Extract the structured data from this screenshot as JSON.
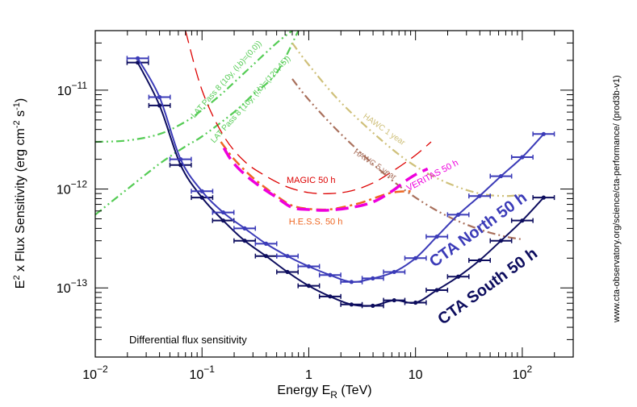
{
  "chart_data": {
    "type": "line",
    "title": "",
    "xlabel": "Energy E_R (TeV)",
    "ylabel": "E² x Flux Sensitivity (erg cm⁻² s⁻¹)",
    "x_scale": "log",
    "y_scale": "log",
    "xlim": [
      0.01,
      300
    ],
    "ylim": [
      2e-14,
      4e-11
    ],
    "x_ticks": [
      {
        "value": 0.01,
        "base": "10",
        "exp": "−2"
      },
      {
        "value": 0.1,
        "base": "10",
        "exp": "−1"
      },
      {
        "value": 1,
        "base": "1",
        "exp": ""
      },
      {
        "value": 10,
        "base": "10",
        "exp": ""
      },
      {
        "value": 100,
        "base": "10",
        "exp": "2"
      }
    ],
    "y_ticks": [
      {
        "value": 1e-13,
        "base": "10",
        "exp": "−13"
      },
      {
        "value": 1e-12,
        "base": "10",
        "exp": "−12"
      },
      {
        "value": 1e-11,
        "base": "10",
        "exp": "−11"
      }
    ],
    "annotation": "Differential flux sensitivity",
    "side_note": "www.cta-observatory.org/science/cta-performance/ (prod3b-v1)",
    "series": [
      {
        "name": "CTA North 50 h",
        "style": "points-line",
        "color": "#3b3bb8",
        "x": [
          0.025,
          0.04,
          0.063,
          0.1,
          0.158,
          0.251,
          0.398,
          0.631,
          1.0,
          1.585,
          2.512,
          3.981,
          6.31,
          10.0,
          15.85,
          25.12,
          39.81,
          63.1,
          100.0,
          158.5
        ],
        "y": [
          2.1e-11,
          8.5e-12,
          2e-12,
          9.5e-13,
          5.8e-13,
          4e-13,
          2.8e-13,
          2.1e-13,
          1.65e-13,
          1.35e-13,
          1.15e-13,
          1.25e-13,
          1.45e-13,
          2e-13,
          3.3e-13,
          5.5e-13,
          8.5e-13,
          1.35e-12,
          2.1e-12,
          3.6e-12
        ]
      },
      {
        "name": "CTA South 50 h",
        "style": "points-line",
        "color": "#0d0d5e",
        "x": [
          0.025,
          0.04,
          0.063,
          0.1,
          0.158,
          0.251,
          0.398,
          0.631,
          1.0,
          1.585,
          2.512,
          3.981,
          6.31,
          10.0,
          15.85,
          25.12,
          39.81,
          63.1,
          100.0,
          158.5
        ],
        "y": [
          1.9e-11,
          7e-12,
          1.75e-12,
          8.2e-13,
          4.8e-13,
          3e-13,
          2.1e-13,
          1.45e-13,
          1.05e-13,
          8.2e-14,
          6.8e-14,
          6.6e-14,
          7.5e-14,
          7.1e-14,
          9.5e-14,
          1.3e-13,
          1.9e-13,
          3e-13,
          4.8e-13,
          8.2e-13
        ]
      },
      {
        "name": "MAGIC 50 h",
        "style": "dashed",
        "color": "#dd0000",
        "x": [
          0.07,
          0.1,
          0.158,
          0.251,
          0.398,
          0.631,
          1.0,
          1.585,
          2.512,
          3.981,
          6.31,
          10.0,
          14.0
        ],
        "y": [
          4e-11,
          1e-11,
          3.5e-12,
          1.9e-12,
          1.35e-12,
          1.05e-12,
          9.2e-13,
          9e-13,
          9.6e-13,
          1.15e-12,
          1.55e-12,
          2.2e-12,
          3e-12
        ]
      },
      {
        "name": "H.E.S.S. 50 h",
        "style": "dash-dot",
        "color": "#ee6622",
        "x": [
          0.15,
          0.2,
          0.3,
          0.5,
          0.7,
          1.0,
          1.5,
          2.0,
          3.0,
          4.0,
          5.5,
          7.0,
          9.0
        ],
        "y": [
          3e-12,
          2e-12,
          1.3e-12,
          8.5e-13,
          6.8e-13,
          6.3e-13,
          6.2e-13,
          6.5e-13,
          7.2e-13,
          8e-13,
          9e-13,
          9.4e-13,
          9.5e-13
        ]
      },
      {
        "name": "VERITAS 50 h",
        "style": "dashed",
        "color": "#ee00dd",
        "x": [
          0.16,
          0.2,
          0.3,
          0.5,
          0.7,
          1.0,
          1.5,
          2.5,
          4.0,
          6.0,
          8.0,
          10.0,
          13.0
        ],
        "y": [
          2.6e-12,
          1.8e-12,
          1.2e-12,
          8.2e-13,
          6.5e-13,
          6.2e-13,
          6.1e-13,
          6.5e-13,
          7.4e-13,
          9.5e-13,
          1.2e-12,
          1.4e-12,
          1.6e-12
        ]
      },
      {
        "name": "HAWC 1 year",
        "style": "dash-dot-dot",
        "color": "#cfc07a",
        "x": [
          0.7,
          1.0,
          2.0,
          5.0,
          10.0,
          20.0,
          40.0,
          70.0,
          100.0
        ],
        "y": [
          3e-11,
          1.8e-11,
          7.5e-12,
          3e-12,
          1.7e-12,
          1.15e-12,
          9e-13,
          8.5e-13,
          8.8e-13
        ]
      },
      {
        "name": "HAWC 5 year",
        "style": "dash-dot-dot",
        "color": "#a9705c",
        "x": [
          0.7,
          1.0,
          2.0,
          5.0,
          10.0,
          20.0,
          40.0,
          70.0,
          100.0
        ],
        "y": [
          1.3e-11,
          8e-12,
          3.6e-12,
          1.45e-12,
          8.2e-13,
          5.3e-13,
          3.9e-13,
          3.3e-13,
          3.1e-13
        ]
      },
      {
        "name": "LAT Pass 8 (10y, (l,b)=(0,0))",
        "style": "dash-dot-dot",
        "color": "#55cc55",
        "x": [
          0.01,
          0.02,
          0.04,
          0.07,
          0.1,
          0.15,
          0.2,
          0.3,
          0.5,
          0.7
        ],
        "y": [
          3e-12,
          3.1e-12,
          3.6e-12,
          4.8e-12,
          6.3e-12,
          9e-12,
          1.2e-11,
          1.8e-11,
          3e-11,
          4e-11
        ]
      },
      {
        "name": "LAT Pass 8 (10y, (l,b)=(120,45))",
        "style": "dash-dot-dot",
        "color": "#55cc55",
        "x": [
          0.01,
          0.02,
          0.04,
          0.07,
          0.1,
          0.2,
          0.3,
          0.5,
          0.8
        ],
        "y": [
          5.5e-13,
          1e-12,
          1.8e-12,
          2.7e-12,
          3.4e-12,
          6e-12,
          9e-12,
          1.5e-11,
          4e-11
        ]
      }
    ],
    "curve_labels": [
      {
        "series": "LAT Pass 8 (10y, (l,b)=(0,0))",
        "text": "LAT Pass 8 (10y, (l,b)=(0,0))",
        "x": 0.085,
        "y": 5.2e-12,
        "angle": -48,
        "color": "#55cc55",
        "size": 10
      },
      {
        "series": "LAT Pass 8 (10y, (l,b)=(120,45))",
        "text": "LAT Pass 8 (10y, (l,b)=(120,45))",
        "x": 0.13,
        "y": 2.9e-12,
        "angle": -48,
        "color": "#55cc55",
        "size": 10
      },
      {
        "series": "HAWC 1 year",
        "text": "HAWC 1 year",
        "x": 3.2,
        "y": 5.3e-12,
        "angle": 35,
        "color": "#cfc07a",
        "size": 10
      },
      {
        "series": "HAWC 5 year",
        "text": "HAWC 5 year",
        "x": 2.6,
        "y": 2.3e-12,
        "angle": 33,
        "color": "#a9705c",
        "size": 10
      },
      {
        "series": "MAGIC 50 h",
        "text": "MAGIC 50 h",
        "x": 0.62,
        "y": 1.15e-12,
        "angle": 0,
        "color": "#dd0000",
        "size": 11
      },
      {
        "series": "VERITAS 50 h",
        "text": "VERITAS 50 h",
        "x": 8.6,
        "y": 9.5e-13,
        "angle": -28,
        "color": "#ee00dd",
        "size": 11
      },
      {
        "series": "H.E.S.S. 50 h",
        "text": "H.E.S.S. 50 h",
        "x": 0.65,
        "y": 4.4e-13,
        "angle": 0,
        "color": "#ee6622",
        "size": 11
      },
      {
        "series": "CTA North 50 h",
        "text": "CTA North 50 h",
        "x": 15.0,
        "y": 1.6e-13,
        "angle": -36,
        "color": "#3b3bb8",
        "size": 20
      },
      {
        "series": "CTA South 50 h",
        "text": "CTA South 50 h",
        "x": 18.0,
        "y": 4.2e-14,
        "angle": -36,
        "color": "#0d0d5e",
        "size": 20
      }
    ]
  }
}
